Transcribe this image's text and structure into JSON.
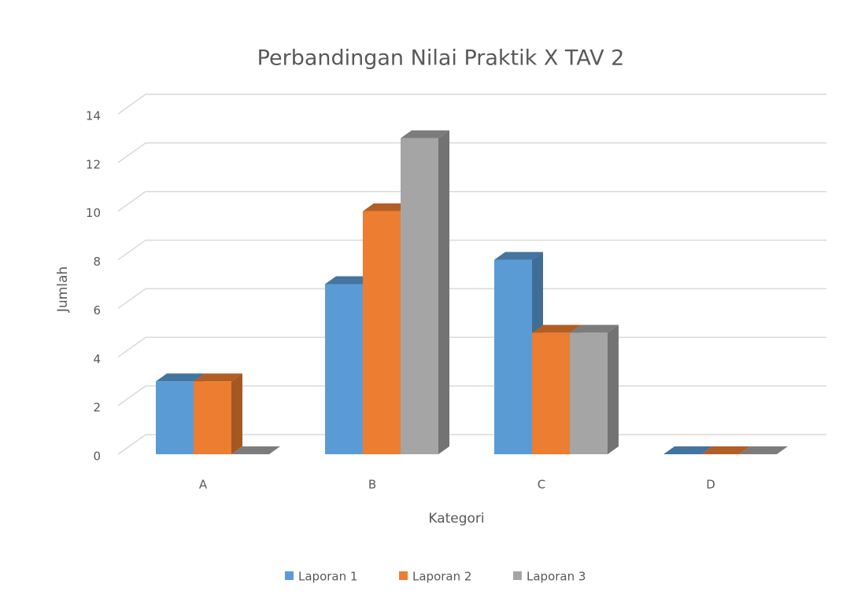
{
  "chart_data": {
    "type": "bar3d",
    "title": "Perbandingan Nilai Praktik X TAV 2",
    "x_label": "Kategori",
    "y_label": "Jumlah",
    "categories": [
      "A",
      "B",
      "C",
      "D"
    ],
    "series": [
      {
        "name": "Laporan 1",
        "color": "#5b9bd5",
        "values": [
          3,
          7,
          8,
          0
        ]
      },
      {
        "name": "Laporan 2",
        "color": "#ed7d31",
        "values": [
          3,
          10,
          5,
          0
        ]
      },
      {
        "name": "Laporan 3",
        "color": "#a5a5a5",
        "values": [
          0,
          13,
          5,
          0
        ]
      }
    ],
    "ylim": [
      0,
      14
    ],
    "yticks": [
      0,
      2,
      4,
      6,
      8,
      10,
      12,
      14
    ],
    "grid": true,
    "legend": "bottom"
  }
}
